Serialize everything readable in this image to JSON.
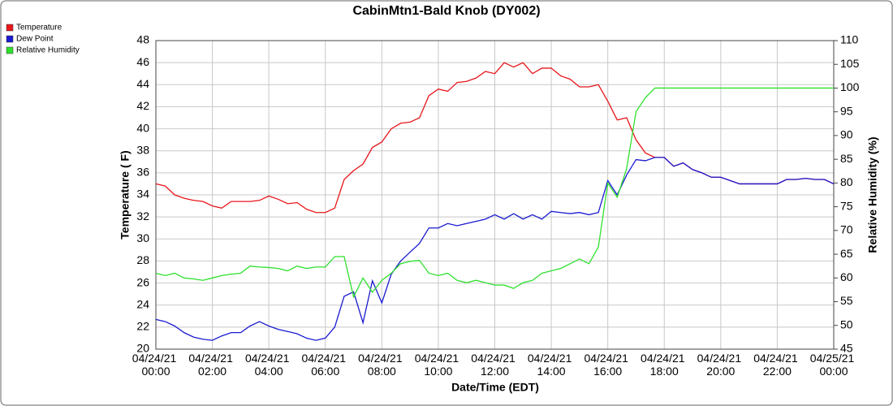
{
  "chart_data": {
    "type": "line",
    "title": "CabinMtn1-Bald Knob (DY002)",
    "x_label": "Date/Time (EDT)",
    "y_label": "Temperature ( F)",
    "y2_label": "Relative Humidity (%)",
    "grid": true,
    "legend": "top-left",
    "x": [
      0,
      20,
      40,
      60,
      80,
      100,
      120,
      140,
      160,
      180,
      200,
      220,
      240,
      260,
      280,
      300,
      320,
      340,
      360,
      380,
      400,
      420,
      440,
      460,
      480,
      500,
      520,
      540,
      560,
      580,
      600,
      620,
      640,
      660,
      680,
      700,
      720,
      740,
      760,
      780,
      800,
      820,
      840,
      860,
      880,
      900,
      920,
      940,
      960,
      980,
      1000,
      1020,
      1040,
      1060,
      1080,
      1100,
      1120,
      1140,
      1160,
      1180,
      1200,
      1220,
      1240,
      1260,
      1280,
      1300,
      1320,
      1340,
      1360,
      1380,
      1400,
      1420,
      1440
    ],
    "xlim": [
      0,
      1440
    ],
    "xticks": [
      {
        "value": 0,
        "label": "04/24/21 00:00"
      },
      {
        "value": 120,
        "label": "04/24/21 02:00"
      },
      {
        "value": 240,
        "label": "04/24/21 04:00"
      },
      {
        "value": 360,
        "label": "04/24/21 06:00"
      },
      {
        "value": 480,
        "label": "04/24/21 08:00"
      },
      {
        "value": 600,
        "label": "04/24/21 10:00"
      },
      {
        "value": 720,
        "label": "04/24/21 12:00"
      },
      {
        "value": 840,
        "label": "04/24/21 14:00"
      },
      {
        "value": 960,
        "label": "04/24/21 16:00"
      },
      {
        "value": 1080,
        "label": "04/24/21 18:00"
      },
      {
        "value": 1200,
        "label": "04/24/21 20:00"
      },
      {
        "value": 1320,
        "label": "04/24/21 22:00"
      },
      {
        "value": 1440,
        "label": "04/25/21 00:00"
      }
    ],
    "ylim": [
      20,
      48
    ],
    "yticks": [
      20,
      22,
      24,
      26,
      28,
      30,
      32,
      34,
      36,
      38,
      40,
      42,
      44,
      46,
      48
    ],
    "y2lim": [
      45,
      110
    ],
    "y2ticks": [
      45,
      50,
      55,
      60,
      65,
      70,
      75,
      80,
      85,
      90,
      95,
      100,
      105,
      110
    ],
    "series": [
      {
        "name": "Temperature",
        "color": "#e8161b",
        "values": [
          35,
          34.8,
          34,
          33.7,
          33.5,
          33.4,
          33,
          32.8,
          33.4,
          33.4,
          33.4,
          33.5,
          33.9,
          33.6,
          33.2,
          33.3,
          32.7,
          32.4,
          32.4,
          32.8,
          35.4,
          36.2,
          36.8,
          38.3,
          38.8,
          40,
          40.5,
          40.6,
          41,
          43,
          43.6,
          43.4,
          44.2,
          44.3,
          44.6,
          45.2,
          45,
          46,
          45.6,
          46,
          45,
          45.5,
          45.5,
          44.8,
          44.5,
          43.8,
          43.8,
          44,
          42.5,
          40.8,
          41,
          39,
          37.8,
          37.4,
          37.4,
          36.6,
          36.9,
          36.3,
          36,
          35.6,
          35.6,
          35.3,
          35,
          35,
          35,
          35,
          35,
          35.4,
          35.4,
          35.5,
          35.4,
          35.4,
          35
        ]
      },
      {
        "name": "Dew Point",
        "color": "#1a1ad0",
        "values": [
          22.7,
          22.5,
          22.1,
          21.5,
          21.1,
          20.9,
          20.8,
          21.2,
          21.5,
          21.5,
          22.1,
          22.5,
          22.1,
          21.8,
          21.6,
          21.4,
          21,
          20.8,
          21,
          22,
          24.8,
          25.2,
          22.4,
          26.2,
          24.2,
          26.8,
          28,
          28.8,
          29.6,
          31,
          31,
          31.4,
          31.2,
          31.4,
          31.6,
          31.8,
          32.2,
          31.8,
          32.3,
          31.8,
          32.2,
          31.8,
          32.5,
          32.4,
          32.3,
          32.4,
          32.2,
          32.4,
          35.3,
          34,
          35.8,
          37.2,
          37.1,
          37.4,
          37.4,
          36.6,
          36.9,
          36.3,
          36,
          35.6,
          35.6,
          35.3,
          35,
          35,
          35,
          35,
          35,
          35.4,
          35.4,
          35.5,
          35.4,
          35.4,
          35
        ]
      },
      {
        "name": "Relative Humidity",
        "color": "#2ee02e",
        "axis": "y2",
        "values": [
          61,
          60.5,
          61,
          60,
          59.8,
          59.5,
          60,
          60.5,
          60.8,
          61,
          62.5,
          62.3,
          62.2,
          62,
          61.5,
          62.5,
          62,
          62.3,
          62.3,
          64.5,
          64.5,
          56,
          60,
          57,
          59.5,
          61,
          63,
          63.5,
          63.7,
          61,
          60.5,
          61,
          59.5,
          59,
          59.5,
          59,
          58.5,
          58.5,
          57.8,
          59,
          59.5,
          61,
          61.5,
          62,
          63,
          64,
          63,
          66.5,
          80,
          77,
          83,
          95,
          98,
          100,
          100,
          100,
          100,
          100,
          100,
          100,
          100,
          100,
          100,
          100,
          100,
          100,
          100,
          100,
          100,
          100,
          100,
          100,
          100
        ]
      }
    ]
  }
}
